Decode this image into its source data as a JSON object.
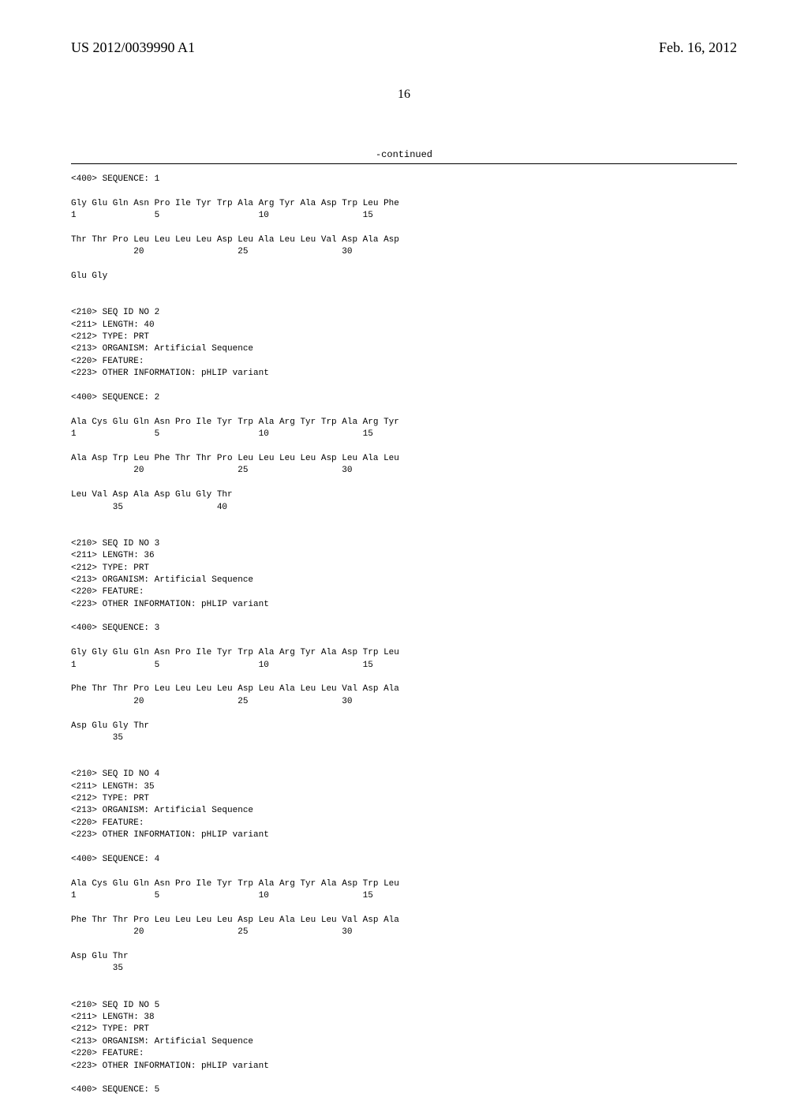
{
  "header": {
    "pub_number": "US 2012/0039990 A1",
    "pub_date": "Feb. 16, 2012"
  },
  "page_number": "16",
  "continued_label": "-continued",
  "sequence_text": "<400> SEQUENCE: 1\n\nGly Glu Gln Asn Pro Ile Tyr Trp Ala Arg Tyr Ala Asp Trp Leu Phe\n1               5                   10                  15\n\nThr Thr Pro Leu Leu Leu Leu Asp Leu Ala Leu Leu Val Asp Ala Asp\n            20                  25                  30\n\nGlu Gly\n\n\n<210> SEQ ID NO 2\n<211> LENGTH: 40\n<212> TYPE: PRT\n<213> ORGANISM: Artificial Sequence\n<220> FEATURE:\n<223> OTHER INFORMATION: pHLIP variant\n\n<400> SEQUENCE: 2\n\nAla Cys Glu Gln Asn Pro Ile Tyr Trp Ala Arg Tyr Trp Ala Arg Tyr\n1               5                   10                  15\n\nAla Asp Trp Leu Phe Thr Thr Pro Leu Leu Leu Leu Asp Leu Ala Leu\n            20                  25                  30\n\nLeu Val Asp Ala Asp Glu Gly Thr\n        35                  40\n\n\n<210> SEQ ID NO 3\n<211> LENGTH: 36\n<212> TYPE: PRT\n<213> ORGANISM: Artificial Sequence\n<220> FEATURE:\n<223> OTHER INFORMATION: pHLIP variant\n\n<400> SEQUENCE: 3\n\nGly Gly Glu Gln Asn Pro Ile Tyr Trp Ala Arg Tyr Ala Asp Trp Leu\n1               5                   10                  15\n\nPhe Thr Thr Pro Leu Leu Leu Leu Asp Leu Ala Leu Leu Val Asp Ala\n            20                  25                  30\n\nAsp Glu Gly Thr\n        35\n\n\n<210> SEQ ID NO 4\n<211> LENGTH: 35\n<212> TYPE: PRT\n<213> ORGANISM: Artificial Sequence\n<220> FEATURE:\n<223> OTHER INFORMATION: pHLIP variant\n\n<400> SEQUENCE: 4\n\nAla Cys Glu Gln Asn Pro Ile Tyr Trp Ala Arg Tyr Ala Asp Trp Leu\n1               5                   10                  15\n\nPhe Thr Thr Pro Leu Leu Leu Leu Asp Leu Ala Leu Leu Val Asp Ala\n            20                  25                  30\n\nAsp Glu Thr\n        35\n\n\n<210> SEQ ID NO 5\n<211> LENGTH: 38\n<212> TYPE: PRT\n<213> ORGANISM: Artificial Sequence\n<220> FEATURE:\n<223> OTHER INFORMATION: pHLIP variant\n\n<400> SEQUENCE: 5"
}
